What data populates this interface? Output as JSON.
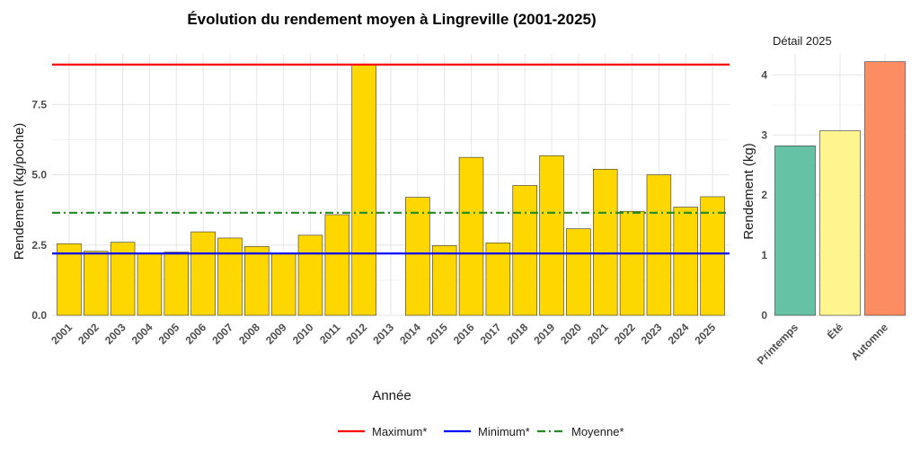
{
  "chart_data": [
    {
      "type": "bar",
      "title": "Évolution du rendement moyen à Lingreville (2001-2025)",
      "xlabel": "Année",
      "ylabel": "Rendement (kg/poche)",
      "ylim": [
        0,
        9.3
      ],
      "yticks": [
        "0.0",
        "2.5",
        "5.0",
        "7.5"
      ],
      "ytick_values": [
        0,
        2.5,
        5.0,
        7.5
      ],
      "categories": [
        "2001",
        "2002",
        "2003",
        "2004",
        "2005",
        "2006",
        "2007",
        "2008",
        "2009",
        "2010",
        "2011",
        "2012",
        "2013",
        "2014",
        "2015",
        "2016",
        "2017",
        "2018",
        "2019",
        "2020",
        "2021",
        "2022",
        "2023",
        "2024",
        "2025"
      ],
      "values": [
        2.55,
        2.28,
        2.6,
        2.2,
        2.25,
        2.97,
        2.75,
        2.45,
        2.22,
        2.85,
        3.58,
        8.92,
        null,
        4.2,
        2.48,
        5.62,
        2.58,
        4.62,
        5.68,
        3.08,
        5.2,
        3.7,
        5.0,
        3.85,
        4.22
      ],
      "bar_color": "#FFD700",
      "reference_lines": [
        {
          "name": "Maximum*",
          "value": 8.92,
          "color": "#FF0000",
          "style": "solid"
        },
        {
          "name": "Minimum*",
          "value": 2.2,
          "color": "#0000FF",
          "style": "solid"
        },
        {
          "name": "Moyenne*",
          "value": 3.65,
          "color": "#228B22",
          "style": "dashdot"
        }
      ],
      "grid": true,
      "legend_position": "bottom"
    },
    {
      "type": "bar",
      "title": "Détail 2025",
      "xlabel": "",
      "ylabel": "Rendement (kg)",
      "ylim": [
        0,
        4.35
      ],
      "yticks": [
        "0",
        "1",
        "2",
        "3",
        "4"
      ],
      "ytick_values": [
        0,
        1,
        2,
        3,
        4
      ],
      "categories": [
        "Printemps",
        "Été",
        "Automne"
      ],
      "values": [
        2.82,
        3.07,
        4.22
      ],
      "colors": [
        "#66C2A5",
        "#FFF58F",
        "#FC8D62"
      ],
      "grid": true
    }
  ]
}
